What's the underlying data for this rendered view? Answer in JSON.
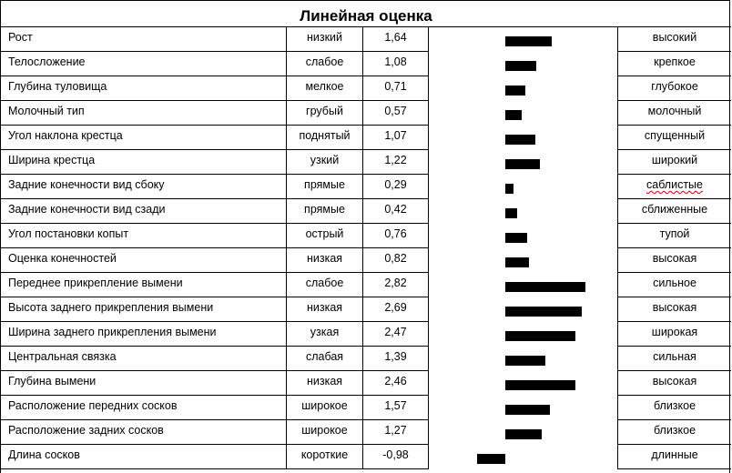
{
  "title": "Линейная оценка",
  "rows": [
    {
      "trait": "Рост",
      "low": "низкий",
      "value": "1,64",
      "high": "высокий"
    },
    {
      "trait": "Телосложение",
      "low": "слабое",
      "value": "1,08",
      "high": "крепкое"
    },
    {
      "trait": "Глубина туловища",
      "low": "мелкое",
      "value": "0,71",
      "high": "глубокое"
    },
    {
      "trait": "Молочный тип",
      "low": "грубый",
      "value": "0,57",
      "high": "молочный"
    },
    {
      "trait": "Угол наклона крестца",
      "low": "поднятый",
      "value": "1,07",
      "high": "спущенный"
    },
    {
      "trait": "Ширина крестца",
      "low": "узкий",
      "value": "1,22",
      "high": "широкий"
    },
    {
      "trait": "Задние конечности вид сбоку",
      "low": "прямые",
      "value": "0,29",
      "high": "саблистые"
    },
    {
      "trait": "Задние конечности вид сзади",
      "low": "прямые",
      "value": "0,42",
      "high": "сближенные"
    },
    {
      "trait": "Угол постановки копыт",
      "low": "острый",
      "value": "0,76",
      "high": "тупой"
    },
    {
      "trait": "Оценка конечностей",
      "low": "низкая",
      "value": "0,82",
      "high": "высокая"
    },
    {
      "trait": "Переднее прикрепление вымени",
      "low": "слабое",
      "value": "2,82",
      "high": "сильное"
    },
    {
      "trait": "Высота заднего прикрепления вымени",
      "low": "низкая",
      "value": "2,69",
      "high": "высокая"
    },
    {
      "trait": "Ширина заднего прикрепления вымени",
      "low": "узкая",
      "value": "2,47",
      "high": "широкая"
    },
    {
      "trait": "Центральная связка",
      "low": "слабая",
      "value": "1,39",
      "high": "сильная"
    },
    {
      "trait": "Глубина вымени",
      "low": "низкая",
      "value": "2,46",
      "high": "высокая"
    },
    {
      "trait": "Расположение передних сосков",
      "low": "широкое",
      "value": "1,57",
      "high": "близкое"
    },
    {
      "trait": "Расположение задних сосков",
      "low": "широкое",
      "value": "1,27",
      "high": "близкое"
    },
    {
      "trait": "Длина сосков",
      "low": "короткие",
      "value": "-0,98",
      "high": "длинные"
    }
  ],
  "bar_color": "#000000",
  "chart_data": {
    "type": "bar",
    "orientation": "horizontal",
    "title": "Линейная оценка",
    "categories": [
      "Рост",
      "Телосложение",
      "Глубина туловища",
      "Молочный тип",
      "Угол наклона крестца",
      "Ширина крестца",
      "Задние конечности вид сбоку",
      "Задние конечности вид сзади",
      "Угол постановки копыт",
      "Оценка конечностей",
      "Переднее прикрепление вимени",
      "Высота заднего прикрепления вымени",
      "Ширина заднего прикрепления вымени",
      "Центральная связка",
      "Глубина вымени",
      "Расположение передних сосков",
      "Расположение задних сосков",
      "Длина сосков"
    ],
    "values": [
      1.64,
      1.08,
      0.71,
      0.57,
      1.07,
      1.22,
      0.29,
      0.42,
      0.76,
      0.82,
      2.82,
      2.69,
      2.47,
      1.39,
      2.46,
      1.57,
      1.27,
      -0.98
    ],
    "low_labels": [
      "низкий",
      "слабое",
      "мелкое",
      "грубый",
      "поднятый",
      "узкий",
      "прямые",
      "прямые",
      "острый",
      "низкая",
      "слабое",
      "низкая",
      "узкая",
      "слабая",
      "низкая",
      "широкое",
      "широкое",
      "короткие"
    ],
    "high_labels": [
      "высокий",
      "крепкое",
      "глубокое",
      "молочный",
      "спущенный",
      "широкий",
      "саблистые",
      "сближенные",
      "тупой",
      "высокая",
      "сильное",
      "высокая",
      "широкая",
      "сильная",
      "высокая",
      "близкое",
      "близкое",
      "длинные"
    ],
    "xlabel": "",
    "ylabel": "",
    "grid": false,
    "legend": null
  }
}
